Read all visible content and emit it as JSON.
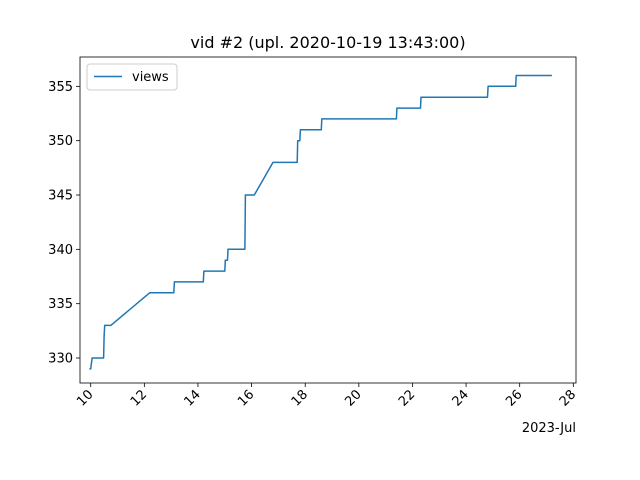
{
  "chart_data": {
    "type": "line",
    "title": "vid #2 (upl. 2020-10-19 13:43:00)",
    "x_offset_label": "2023-Jul",
    "x_unit": "day of July 2023",
    "xlim": [
      9.6,
      28.1
    ],
    "ylim": [
      327.7,
      357.7
    ],
    "x_ticks": [
      10,
      12,
      14,
      16,
      18,
      20,
      22,
      24,
      26,
      28
    ],
    "x_tick_labels": [
      "10",
      "12",
      "14",
      "16",
      "18",
      "20",
      "22",
      "24",
      "26",
      "28"
    ],
    "y_ticks": [
      330,
      335,
      340,
      345,
      350,
      355
    ],
    "y_tick_labels": [
      "330",
      "335",
      "340",
      "345",
      "350",
      "355"
    ],
    "grid": false,
    "legend_position": "upper-left",
    "series": [
      {
        "name": "views",
        "color": "#1f77b4",
        "x": [
          9.95,
          10.0,
          10.05,
          10.48,
          10.5,
          10.52,
          10.75,
          12.2,
          13.1,
          13.12,
          14.2,
          14.22,
          15.0,
          15.02,
          15.1,
          15.12,
          15.75,
          15.77,
          16.1,
          16.8,
          17.7,
          17.72,
          17.8,
          17.82,
          18.6,
          18.62,
          21.4,
          21.42,
          22.3,
          22.32,
          24.8,
          24.82,
          25.85,
          25.87,
          27.2
        ],
        "y": [
          329,
          329,
          330,
          330,
          332,
          333,
          333,
          336,
          336,
          337,
          337,
          338,
          338,
          339,
          339,
          340,
          340,
          345,
          345,
          348,
          348,
          350,
          350,
          351,
          351,
          352,
          352,
          353,
          353,
          354,
          354,
          355,
          355,
          356,
          356
        ]
      }
    ]
  }
}
